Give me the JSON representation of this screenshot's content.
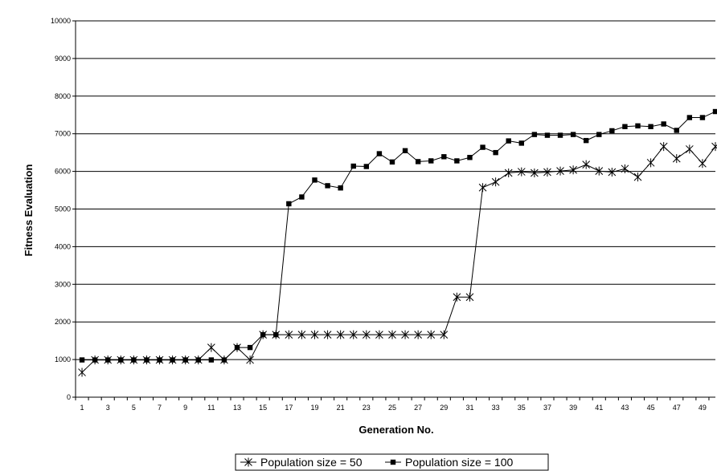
{
  "chart_data": {
    "type": "line",
    "title": "",
    "xlabel": "Generation No.",
    "ylabel": "Fitness Evaluation",
    "x": [
      1,
      2,
      3,
      4,
      5,
      6,
      7,
      8,
      9,
      10,
      11,
      12,
      13,
      14,
      15,
      16,
      17,
      18,
      19,
      20,
      21,
      22,
      23,
      24,
      25,
      26,
      27,
      28,
      29,
      30,
      31,
      32,
      33,
      34,
      35,
      36,
      37,
      38,
      39,
      40,
      41,
      42,
      43,
      44,
      45,
      46,
      47,
      48,
      49,
      50
    ],
    "x_tick_labels": [
      "1",
      "3",
      "5",
      "7",
      "9",
      "11",
      "13",
      "15",
      "17",
      "19",
      "21",
      "23",
      "25",
      "27",
      "29",
      "31",
      "33",
      "35",
      "37",
      "39",
      "41",
      "43",
      "45",
      "47",
      "49"
    ],
    "y_tick_labels": [
      "0",
      "1000",
      "2000",
      "3000",
      "4000",
      "5000",
      "6000",
      "7000",
      "8000",
      "9000",
      "10000"
    ],
    "ylim": [
      0,
      10000
    ],
    "grid": "horizontal",
    "legend_position": "bottom",
    "series": [
      {
        "name": "Population size = 50",
        "marker": "star",
        "color": "#000000",
        "values": [
          660,
          990,
          990,
          990,
          990,
          990,
          990,
          990,
          990,
          990,
          1320,
          990,
          1320,
          990,
          1660,
          1660,
          1660,
          1660,
          1660,
          1660,
          1660,
          1660,
          1660,
          1660,
          1660,
          1660,
          1660,
          1660,
          1660,
          2660,
          2660,
          5570,
          5720,
          5960,
          5990,
          5960,
          5980,
          6010,
          6040,
          6180,
          6010,
          5980,
          6070,
          5850,
          6230,
          6660,
          6340,
          6590,
          6210,
          6660
        ]
      },
      {
        "name": "Population size = 100",
        "marker": "square",
        "color": "#000000",
        "values": [
          990,
          990,
          990,
          990,
          990,
          990,
          990,
          990,
          990,
          990,
          990,
          990,
          1320,
          1320,
          1660,
          1660,
          5140,
          5320,
          5770,
          5620,
          5560,
          6140,
          6130,
          6470,
          6250,
          6550,
          6260,
          6280,
          6390,
          6280,
          6370,
          6640,
          6500,
          6810,
          6750,
          6980,
          6960,
          6960,
          6980,
          6820,
          6980,
          7080,
          7190,
          7210,
          7190,
          7260,
          7090,
          7430,
          7430,
          7590
        ]
      }
    ]
  }
}
